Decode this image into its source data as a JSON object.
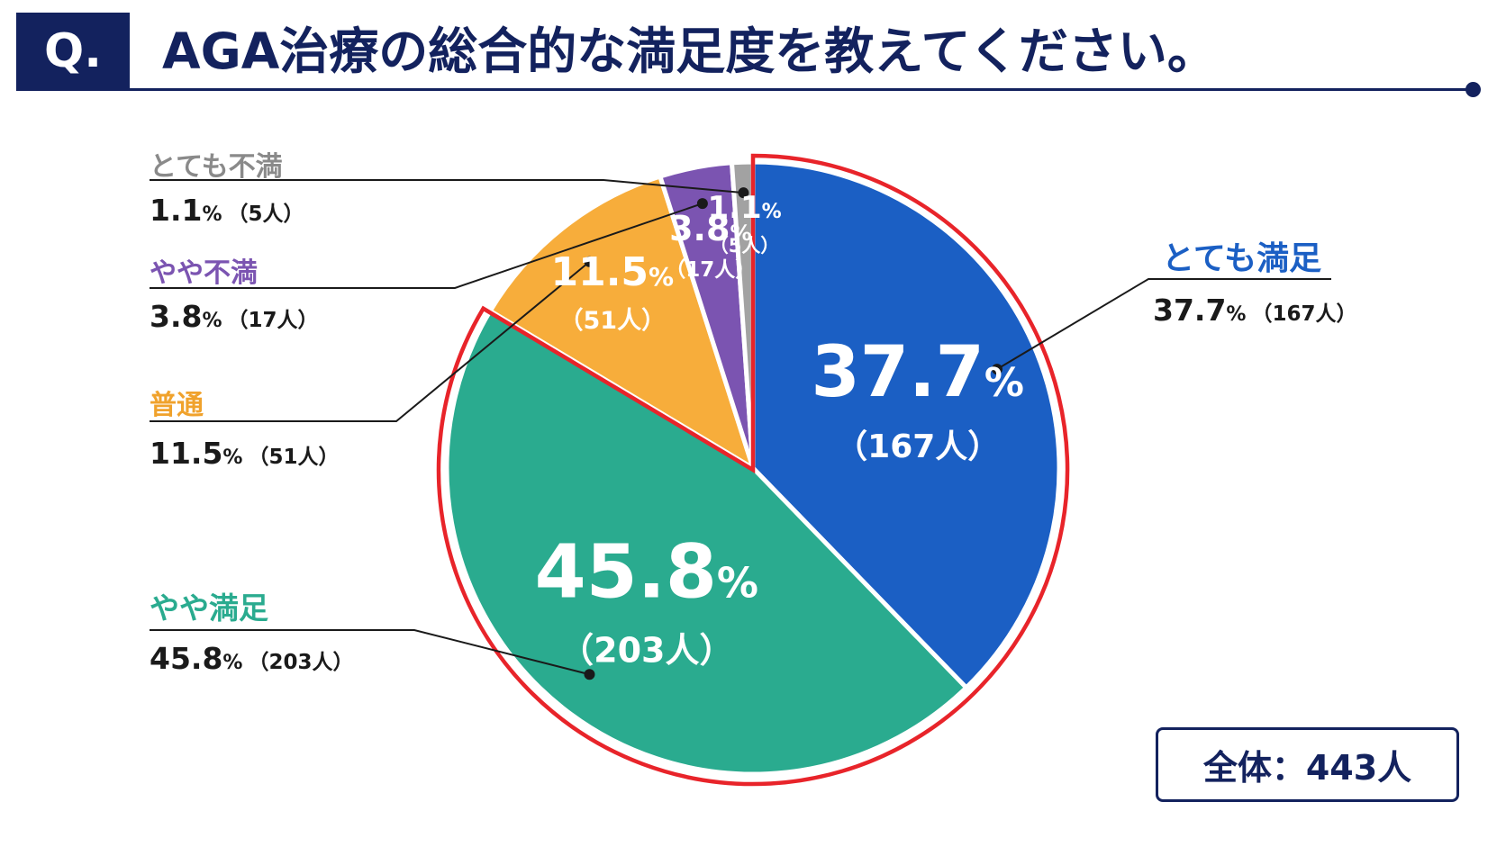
{
  "header": {
    "badge": "Q.",
    "title": "AGA治療の総合的な満足度を教えてください。"
  },
  "chart_data": {
    "type": "pie",
    "title": "AGA治療の総合的な満足度を教えてください。",
    "unit": "%",
    "slices": [
      {
        "name": "とても満足",
        "value": 37.7,
        "count_label": "（167人）",
        "value_label": "37.7",
        "color": "#1b5fc4",
        "highlighted": true
      },
      {
        "name": "やや満足",
        "value": 45.8,
        "count_label": "（203人）",
        "value_label": "45.8",
        "color": "#2aab8f",
        "highlighted": true
      },
      {
        "name": "普通",
        "value": 11.5,
        "count_label": "（51人）",
        "value_label": "11.5",
        "color": "#f7ad3b",
        "highlighted": false
      },
      {
        "name": "やや不満",
        "value": 3.8,
        "count_label": "（17人）",
        "value_label": "3.8",
        "color": "#7b54b1",
        "highlighted": false
      },
      {
        "name": "とても不満",
        "value": 1.1,
        "count_label": "（5人）",
        "value_label": "1.1",
        "color": "#a2a2a2",
        "highlighted": false
      }
    ],
    "highlight_color": "#e8242a",
    "legend_placement": "callouts-outside",
    "total_label": "全体：443人"
  }
}
